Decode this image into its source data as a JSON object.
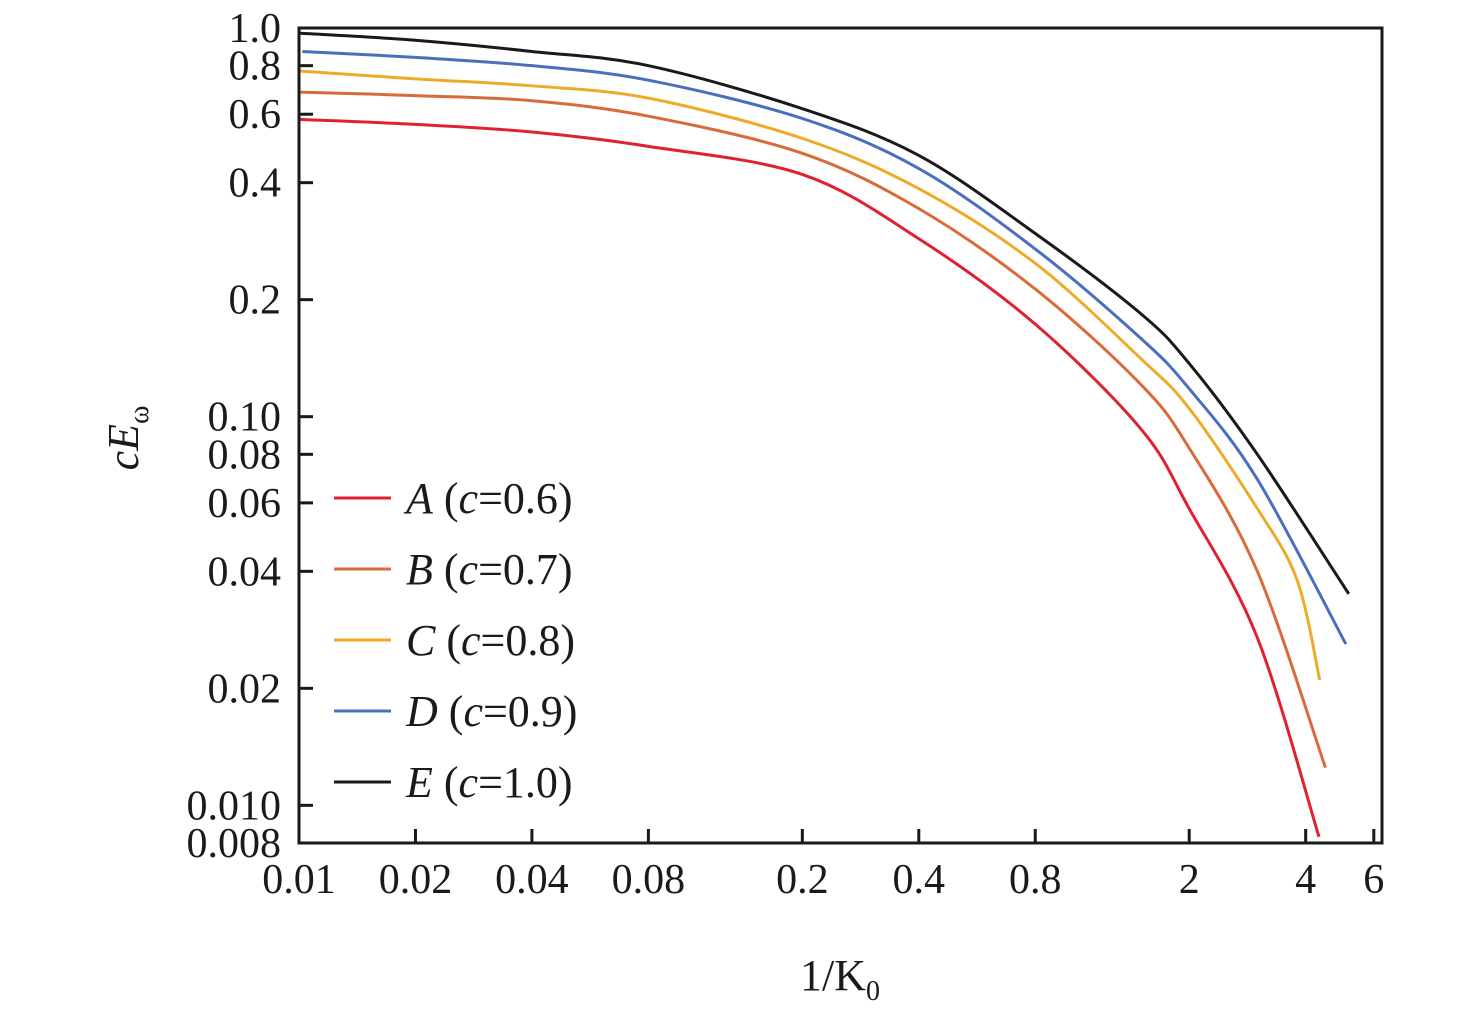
{
  "chart_data": {
    "type": "line",
    "title": "",
    "xlabel": {
      "main": "1/K",
      "sub": "0"
    },
    "ylabel": {
      "main": "cE",
      "sub": "ω"
    },
    "xscale": "log",
    "yscale": "log",
    "xlim": [
      0.01,
      6.3
    ],
    "ylim": [
      0.008,
      1.0
    ],
    "grid": false,
    "legend_position": "bottom-left",
    "xticks": [
      0.01,
      0.02,
      0.04,
      0.08,
      0.2,
      0.4,
      0.8,
      2,
      4,
      6
    ],
    "xtick_labels": [
      "0.01",
      "0.02",
      "0.04",
      "0.08",
      "0.2",
      "0.4",
      "0.8",
      "2",
      "4",
      "6"
    ],
    "yticks": [
      1.0,
      0.8,
      0.6,
      0.4,
      0.2,
      0.1,
      0.08,
      0.06,
      0.04,
      0.02,
      0.01,
      0.008
    ],
    "ytick_labels": [
      "1.0",
      "0.8",
      "0.6",
      "0.4",
      "0.2",
      "0.10",
      "0.08",
      "0.06",
      "0.04",
      "0.02",
      "0.010",
      "0.008"
    ],
    "series": [
      {
        "name": "A (c=0.6)",
        "letter": "A",
        "open": " (",
        "var": "c",
        "rest": "=0.6)",
        "color": "#e02130",
        "x": [
          0.01,
          0.02,
          0.04,
          0.08,
          0.2,
          0.4,
          0.8,
          1.5,
          2,
          3,
          4.33
        ],
        "y": [
          0.582,
          0.565,
          0.54,
          0.496,
          0.42,
          0.287,
          0.173,
          0.093,
          0.058,
          0.027,
          0.0083
        ]
      },
      {
        "name": "B (c=0.7)",
        "letter": "B",
        "open": " (",
        "var": "c",
        "rest": "=0.7)",
        "color": "#d96b3a",
        "x": [
          0.01,
          0.02,
          0.04,
          0.08,
          0.2,
          0.4,
          0.8,
          1.5,
          2,
          3,
          4.5
        ],
        "y": [
          0.684,
          0.67,
          0.65,
          0.593,
          0.476,
          0.343,
          0.213,
          0.121,
          0.083,
          0.04,
          0.0125
        ]
      },
      {
        "name": "C (c=0.8)",
        "letter": "C",
        "open": " (",
        "var": "c",
        "rest": "=0.8)",
        "color": "#eeab2a",
        "x": [
          0.01,
          0.02,
          0.04,
          0.08,
          0.2,
          0.4,
          0.8,
          1.5,
          2,
          3,
          3.8,
          4.35
        ],
        "y": [
          0.775,
          0.74,
          0.71,
          0.66,
          0.52,
          0.386,
          0.248,
          0.141,
          0.105,
          0.058,
          0.038,
          0.021
        ]
      },
      {
        "name": "D (c=0.9)",
        "letter": "D",
        "open": " (",
        "var": "c",
        "rest": "=0.9)",
        "color": "#4a6fbf",
        "x": [
          0.0102,
          0.02,
          0.04,
          0.08,
          0.2,
          0.4,
          0.8,
          1.5,
          2,
          3,
          5.08
        ],
        "y": [
          0.87,
          0.84,
          0.8,
          0.734,
          0.585,
          0.435,
          0.27,
          0.159,
          0.118,
          0.069,
          0.026
        ]
      },
      {
        "name": "E (c=1.0)",
        "letter": "E",
        "open": " (",
        "var": "c",
        "rest": "=1.0)",
        "color": "#1a1a1a",
        "x": [
          0.01,
          0.02,
          0.04,
          0.08,
          0.2,
          0.4,
          0.8,
          1.5,
          2,
          3,
          5.17
        ],
        "y": [
          0.97,
          0.93,
          0.87,
          0.8,
          0.62,
          0.47,
          0.296,
          0.184,
          0.137,
          0.08,
          0.035
        ]
      }
    ]
  }
}
